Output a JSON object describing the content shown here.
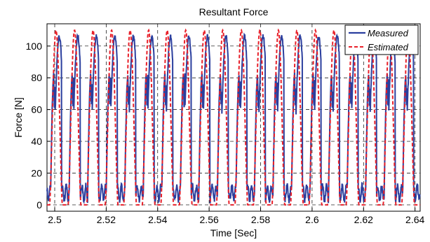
{
  "chart_data": {
    "type": "line",
    "title": "Resultant Force",
    "xlabel": "Time [Sec]",
    "ylabel": "Force [N]",
    "xlim": [
      2.497,
      2.642
    ],
    "ylim": [
      -4,
      114
    ],
    "grid": true,
    "grid_style": "dashed",
    "legend_position": "top-right",
    "x_ticks": [
      2.5,
      2.52,
      2.54,
      2.56,
      2.58,
      2.6,
      2.62,
      2.64
    ],
    "x_tick_labels": [
      "2.5",
      "2.52",
      "2.54",
      "2.56",
      "2.58",
      "2.6",
      "2.62",
      "2.64"
    ],
    "y_ticks": [
      0,
      20,
      40,
      60,
      80,
      100
    ],
    "y_tick_labels": [
      "0",
      "20",
      "40",
      "60",
      "80",
      "100"
    ],
    "period_sec": 0.0072,
    "first_peak_center_sec": 2.5005,
    "cycle_count_visible": 20,
    "series": [
      {
        "name": "Measured",
        "color": "#2b3f9e",
        "style": "solid",
        "baseline_range": [
          3,
          12
        ],
        "first_hump_peak": 82,
        "second_hump_peak": 106
      },
      {
        "name": "Estimated",
        "color": "#e8202a",
        "style": "dashed",
        "baseline": 0,
        "peak": 110
      }
    ]
  }
}
